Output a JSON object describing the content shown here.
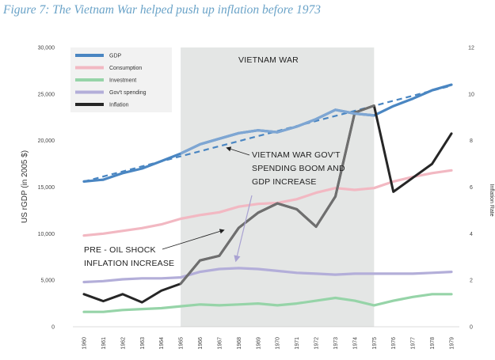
{
  "figure_title": "Figure 7: The Vietnam War helped push up inflation before 1973",
  "chart_data": {
    "type": "line",
    "title": "Figure 7: The Vietnam War helped push up inflation before 1973",
    "x": [
      "1960",
      "1961",
      "1962",
      "1963",
      "1964",
      "1965",
      "1966",
      "1967",
      "1968",
      "1969",
      "1970",
      "1971",
      "1972",
      "1973",
      "1974",
      "1975",
      "1976",
      "1977",
      "1978",
      "1979"
    ],
    "ylabel": "US rGDP (in 2005 $)",
    "y2label": "Inflation Rate",
    "ylim": [
      0,
      30000
    ],
    "y2lim": [
      0,
      12
    ],
    "yticks": [
      "0",
      "5,000",
      "10,000",
      "15,000",
      "20,000",
      "25,000",
      "30,000"
    ],
    "yticks_values": [
      0,
      5000,
      10000,
      15000,
      20000,
      25000,
      30000
    ],
    "y2ticks": [
      "0",
      "2",
      "4",
      "6",
      "8",
      "10",
      "12"
    ],
    "y2ticks_values": [
      0,
      2,
      4,
      6,
      8,
      10,
      12
    ],
    "grid": false,
    "legend_position": "top-left",
    "shaded_region": {
      "label": "VIETNAM WAR",
      "x_start": 1965,
      "x_end": 1975,
      "color": "#e4e6e5"
    },
    "series": [
      {
        "name": "GDP",
        "axis": "left",
        "color": "#4a86c2",
        "values": [
          15600,
          15800,
          16500,
          17000,
          17800,
          18600,
          19600,
          20200,
          20800,
          21100,
          20900,
          21500,
          22300,
          23300,
          22900,
          22700,
          23700,
          24500,
          25400,
          26000
        ]
      },
      {
        "name": "Consumption",
        "axis": "left",
        "color": "#f2b8c2",
        "values": [
          9800,
          10000,
          10300,
          10600,
          11000,
          11600,
          12000,
          12300,
          12900,
          13200,
          13300,
          13700,
          14400,
          14900,
          14700,
          14900,
          15600,
          16100,
          16500,
          16800
        ]
      },
      {
        "name": "Investment",
        "axis": "left",
        "color": "#96d4a8",
        "values": [
          1600,
          1600,
          1800,
          1900,
          2000,
          2200,
          2400,
          2300,
          2400,
          2500,
          2300,
          2500,
          2800,
          3100,
          2800,
          2300,
          2800,
          3200,
          3500,
          3500
        ]
      },
      {
        "name": "Gov't spending",
        "axis": "left",
        "color": "#b3aed9",
        "values": [
          4800,
          4900,
          5100,
          5200,
          5200,
          5300,
          5900,
          6200,
          6300,
          6200,
          6000,
          5800,
          5700,
          5600,
          5700,
          5700,
          5700,
          5700,
          5800,
          5900
        ]
      },
      {
        "name": "Inflation",
        "axis": "right",
        "color": "#262626",
        "values": [
          1.4,
          1.1,
          1.4,
          1.05,
          1.55,
          1.85,
          2.85,
          3.05,
          4.25,
          4.9,
          5.3,
          5.05,
          4.3,
          5.6,
          9.2,
          9.5,
          5.8,
          6.4,
          7.0,
          8.3
        ]
      }
    ],
    "trend": {
      "of": "GDP",
      "axis": "left",
      "style": "dashed",
      "color": "#4a86c2",
      "x_start": 1960,
      "x_end": 1979,
      "y_start": 15600,
      "y_end": 25900
    },
    "annotations": [
      {
        "lines": [
          "VIETNAM  WAR GOV'T",
          "SPENDING BOOM AND",
          "GDP INCREASE"
        ]
      },
      {
        "lines": [
          "PRE - OIL SHOCK",
          "INFLATION INCREASE"
        ]
      }
    ]
  }
}
